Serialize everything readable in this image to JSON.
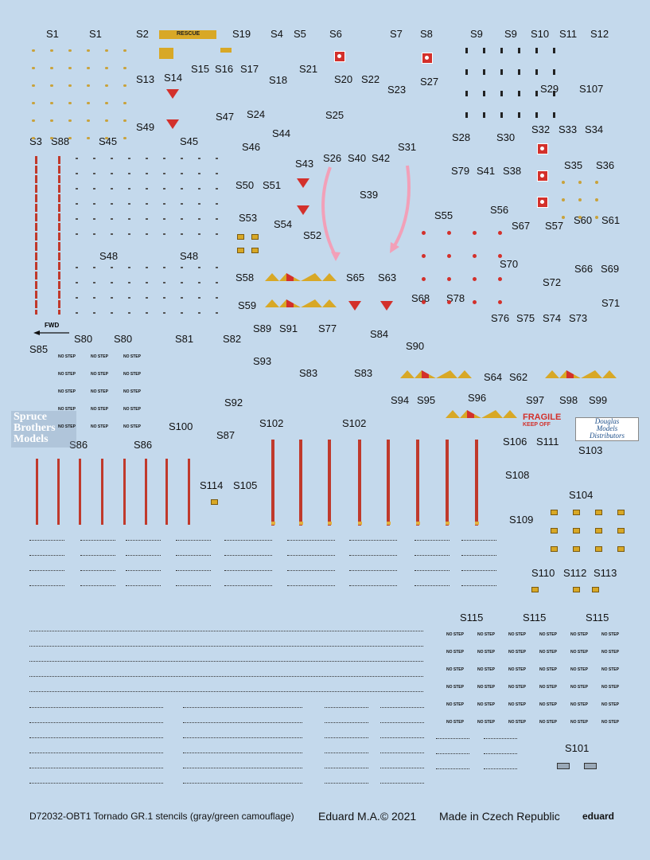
{
  "labels": [
    {
      "t": "S1"
    },
    {
      "t": "S1"
    },
    {
      "t": "S2"
    },
    {
      "t": "S19"
    },
    {
      "t": "S4"
    },
    {
      "t": "S5"
    },
    {
      "t": "S6"
    },
    {
      "t": "S7"
    },
    {
      "t": "S8"
    },
    {
      "t": "S9"
    },
    {
      "t": "S9"
    },
    {
      "t": "S10"
    },
    {
      "t": "S11"
    },
    {
      "t": "S12"
    },
    {
      "t": "S13"
    },
    {
      "t": "S14"
    },
    {
      "t": "S15"
    },
    {
      "t": "S16"
    },
    {
      "t": "S17"
    },
    {
      "t": "S18"
    },
    {
      "t": "S21"
    },
    {
      "t": "S20"
    },
    {
      "t": "S22"
    },
    {
      "t": "S23"
    },
    {
      "t": "S27"
    },
    {
      "t": "S29"
    },
    {
      "t": "S107"
    },
    {
      "t": "S47"
    },
    {
      "t": "S24"
    },
    {
      "t": "S25"
    },
    {
      "t": "S49"
    },
    {
      "t": "S44"
    },
    {
      "t": "S32"
    },
    {
      "t": "S33"
    },
    {
      "t": "S34"
    },
    {
      "t": "S28"
    },
    {
      "t": "S30"
    },
    {
      "t": "S3"
    },
    {
      "t": "S88"
    },
    {
      "t": "S45"
    },
    {
      "t": "S45"
    },
    {
      "t": "S46"
    },
    {
      "t": "S26"
    },
    {
      "t": "S40"
    },
    {
      "t": "S42"
    },
    {
      "t": "S31"
    },
    {
      "t": "S43"
    },
    {
      "t": "S79"
    },
    {
      "t": "S41"
    },
    {
      "t": "S38"
    },
    {
      "t": "S35"
    },
    {
      "t": "S36"
    },
    {
      "t": "S50"
    },
    {
      "t": "S51"
    },
    {
      "t": "S39"
    },
    {
      "t": "S53"
    },
    {
      "t": "S54"
    },
    {
      "t": "S55"
    },
    {
      "t": "S56"
    },
    {
      "t": "S67"
    },
    {
      "t": "S57"
    },
    {
      "t": "S60"
    },
    {
      "t": "S61"
    },
    {
      "t": "S52"
    },
    {
      "t": "S48"
    },
    {
      "t": "S48"
    },
    {
      "t": "S70"
    },
    {
      "t": "S66"
    },
    {
      "t": "S69"
    },
    {
      "t": "S58"
    },
    {
      "t": "S65"
    },
    {
      "t": "S63"
    },
    {
      "t": "S72"
    },
    {
      "t": "S59"
    },
    {
      "t": "S68"
    },
    {
      "t": "S78"
    },
    {
      "t": "S71"
    },
    {
      "t": "S76"
    },
    {
      "t": "S75"
    },
    {
      "t": "S74"
    },
    {
      "t": "S73"
    },
    {
      "t": "S89"
    },
    {
      "t": "S91"
    },
    {
      "t": "S77"
    },
    {
      "t": "S84"
    },
    {
      "t": "S80"
    },
    {
      "t": "S80"
    },
    {
      "t": "S81"
    },
    {
      "t": "S82"
    },
    {
      "t": "S90"
    },
    {
      "t": "S85"
    },
    {
      "t": "S93"
    },
    {
      "t": "S83"
    },
    {
      "t": "S83"
    },
    {
      "t": "S64"
    },
    {
      "t": "S62"
    },
    {
      "t": "S94"
    },
    {
      "t": "S95"
    },
    {
      "t": "S96"
    },
    {
      "t": "S97"
    },
    {
      "t": "S98"
    },
    {
      "t": "S99"
    },
    {
      "t": "S92"
    },
    {
      "t": "S100"
    },
    {
      "t": "S102"
    },
    {
      "t": "S102"
    },
    {
      "t": "S86"
    },
    {
      "t": "S86"
    },
    {
      "t": "S87"
    },
    {
      "t": "S106"
    },
    {
      "t": "S111"
    },
    {
      "t": "S103"
    },
    {
      "t": "S108"
    },
    {
      "t": "S114"
    },
    {
      "t": "S105"
    },
    {
      "t": "S104"
    },
    {
      "t": "S109"
    },
    {
      "t": "S110"
    },
    {
      "t": "S112"
    },
    {
      "t": "S113"
    },
    {
      "t": "S115"
    },
    {
      "t": "S115"
    },
    {
      "t": "S115"
    },
    {
      "t": "S101"
    }
  ],
  "stencil_texts": {
    "rescue": "RESCUE",
    "fwd": "FWD",
    "no_step": "NO STEP",
    "fragile_1": "FRAGILE",
    "fragile_2": "KEEP OFF"
  },
  "watermarks": {
    "spruce_line1": "Spruce",
    "spruce_line2": "Brothers",
    "spruce_line3": "Models",
    "dmd_line1": "Douglas",
    "dmd_line2": "Models",
    "dmd_line3": "Distributors"
  },
  "footer": {
    "product": "D72032-OBT1 Tornado GR.1 stencils (gray/green camouflage)",
    "copyright": "Eduard M.A.© 2021",
    "origin": "Made in Czech Republic",
    "brand": "eduard"
  },
  "colors": {
    "background": "#c4d9ec",
    "stencil_red": "#d3302b",
    "stencil_yellow": "#d8a826",
    "pink_arrow": "#f2a0b8"
  }
}
